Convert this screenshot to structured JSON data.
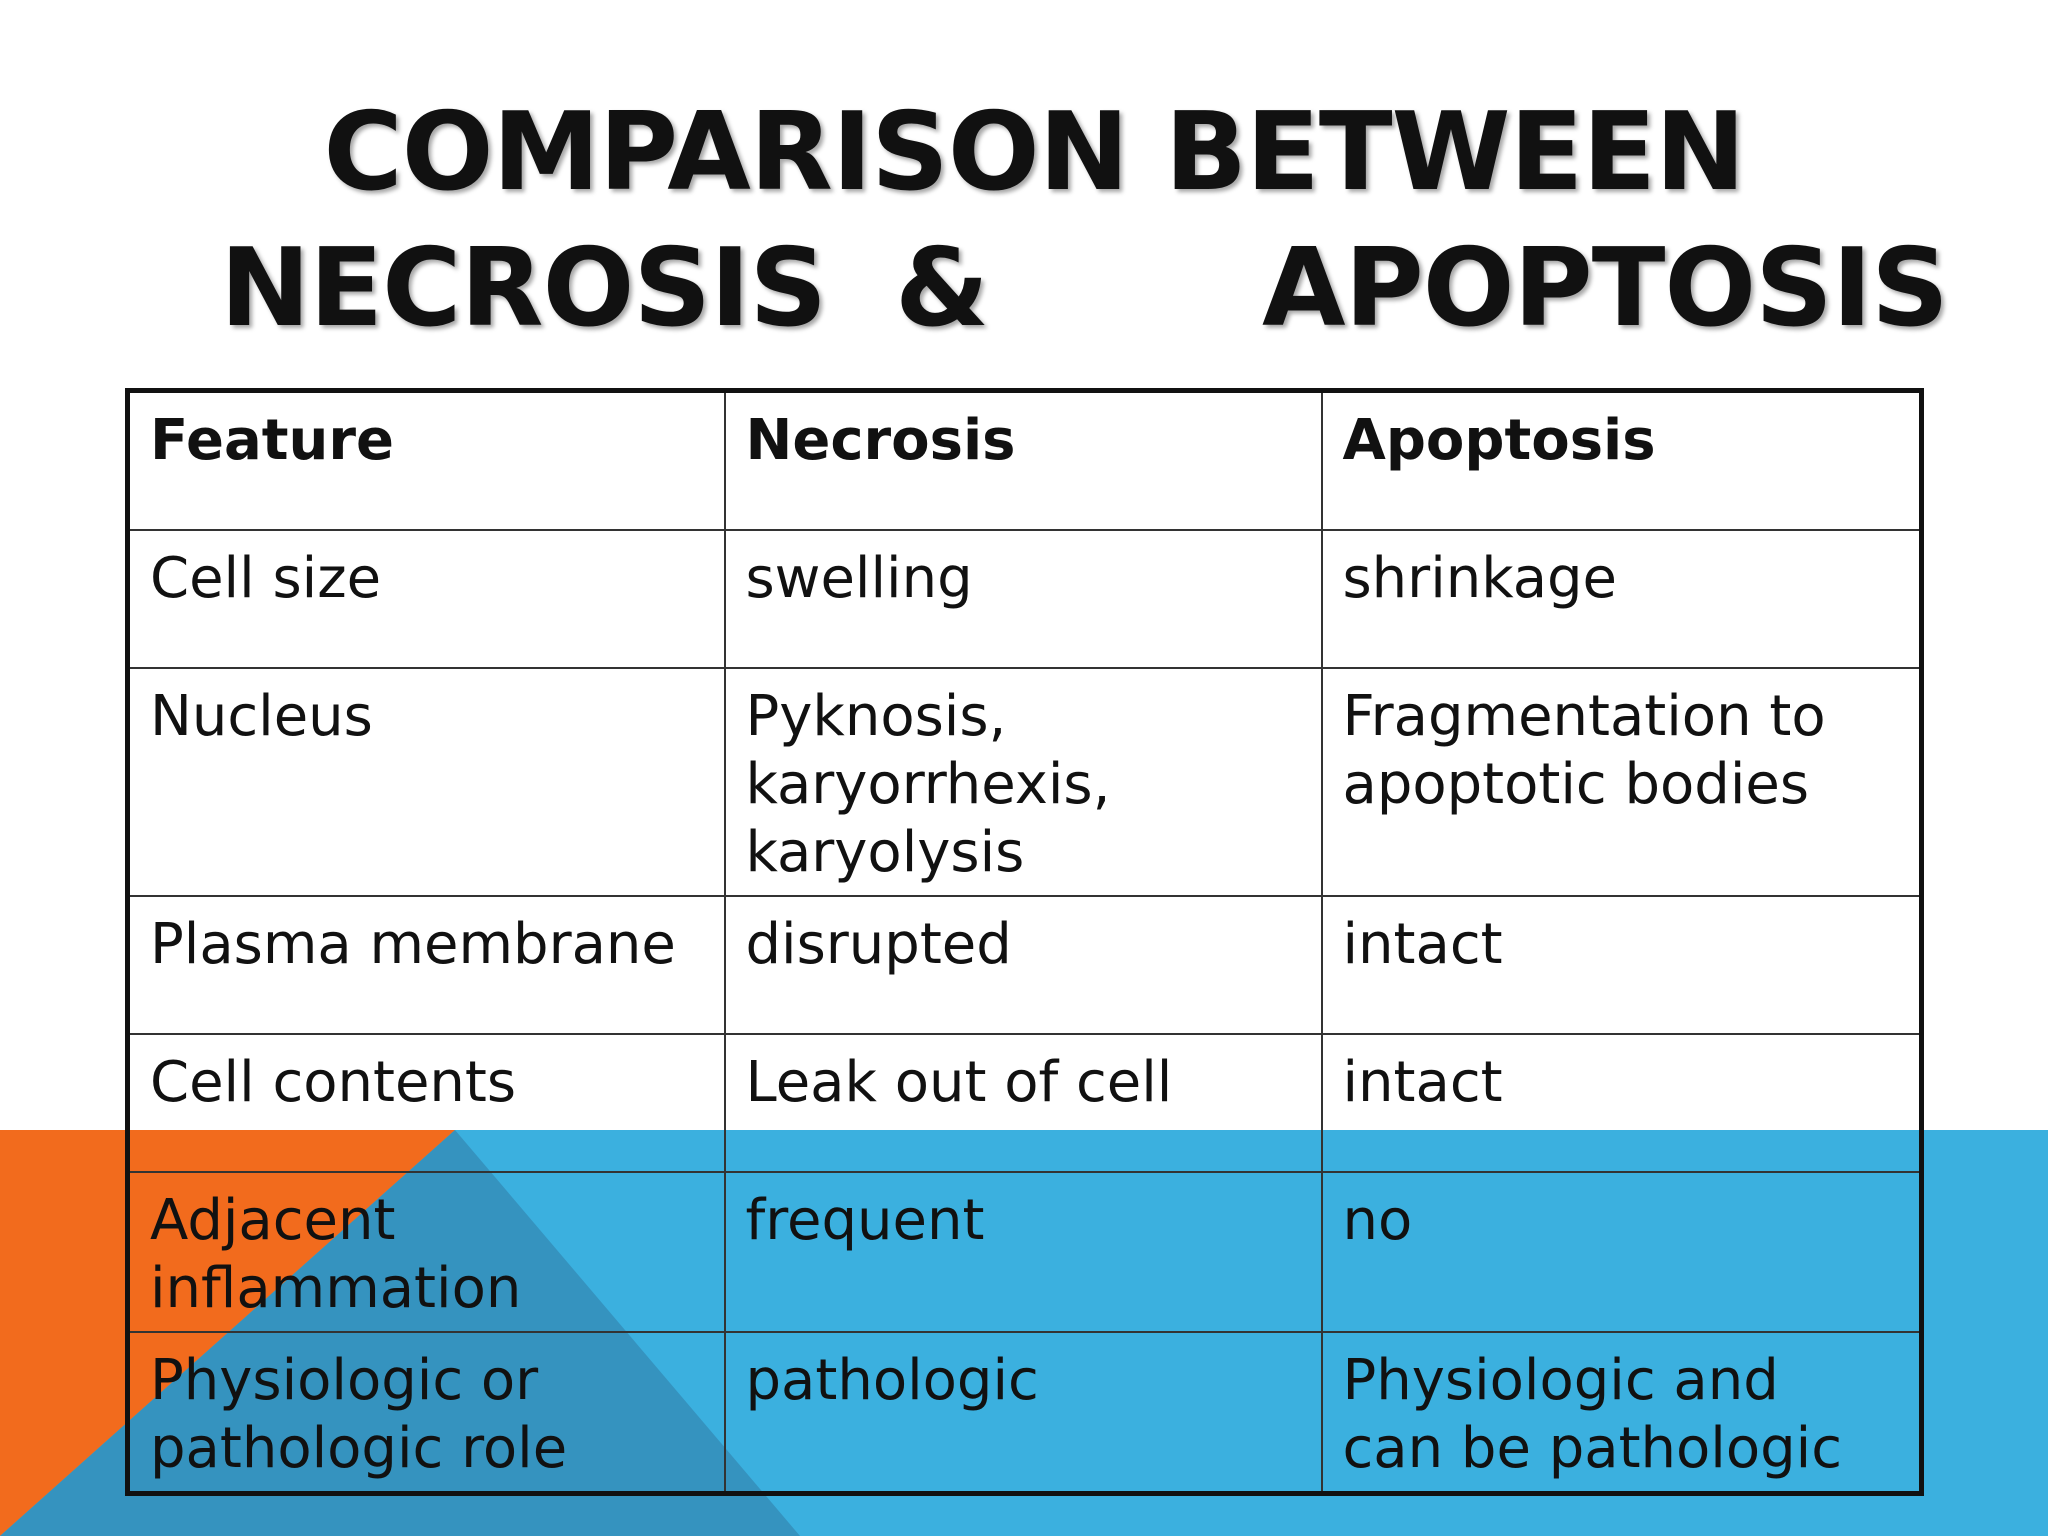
{
  "title": {
    "line1": "COMPARISON BETWEEN",
    "line2_left": "NECROSIS",
    "line2_mid": "&",
    "line2_right": "APOPTOSIS"
  },
  "table": {
    "headers": [
      "Feature",
      "Necrosis",
      "Apoptosis"
    ],
    "rows": [
      [
        "Cell size",
        "swelling",
        "shrinkage"
      ],
      [
        "Nucleus",
        "Pyknosis,\nkaryorrhexis,\nkaryolysis",
        "Fragmentation to\napoptotic bodies"
      ],
      [
        "Plasma membrane",
        "disrupted",
        "intact"
      ],
      [
        "Cell contents",
        "Leak out of cell",
        "intact"
      ],
      [
        "Adjacent\ninflammation",
        "frequent",
        "no"
      ],
      [
        "Physiologic or\npathologic role",
        "pathologic",
        "Physiologic and\ncan be pathologic"
      ]
    ]
  },
  "colors": {
    "accent_orange": "#F26B1D",
    "accent_blue": "#3BB0DF",
    "accent_blue_dark": "#3593BF"
  }
}
